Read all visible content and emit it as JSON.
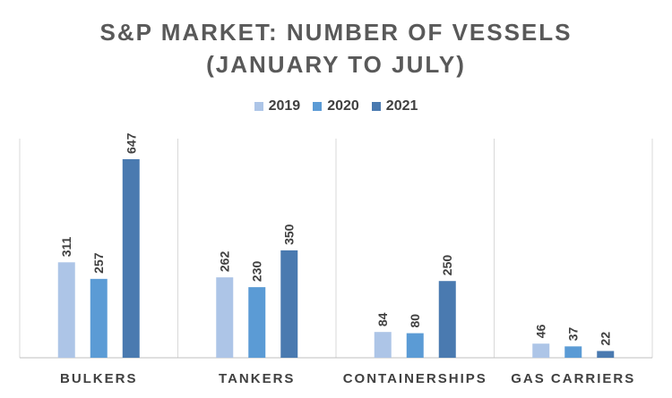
{
  "chart_data": {
    "type": "bar",
    "title": "S&P MARKET:  NUMBER  OF VESSELS\n(JANUARY  TO JULY)",
    "categories": [
      "BULKERS",
      "TANKERS",
      "CONTAINERSHIPS",
      "GAS CARRIERS"
    ],
    "series": [
      {
        "name": "2019",
        "values": [
          311,
          262,
          84,
          46
        ],
        "color": "#adc5e7"
      },
      {
        "name": "2020",
        "values": [
          257,
          230,
          80,
          37
        ],
        "color": "#5b9bd5"
      },
      {
        "name": "2021",
        "values": [
          647,
          350,
          250,
          22
        ],
        "color": "#4a7ab0"
      }
    ],
    "ylim": [
      0,
      647
    ],
    "legend_position": "top",
    "grid": "vertical category separators"
  }
}
